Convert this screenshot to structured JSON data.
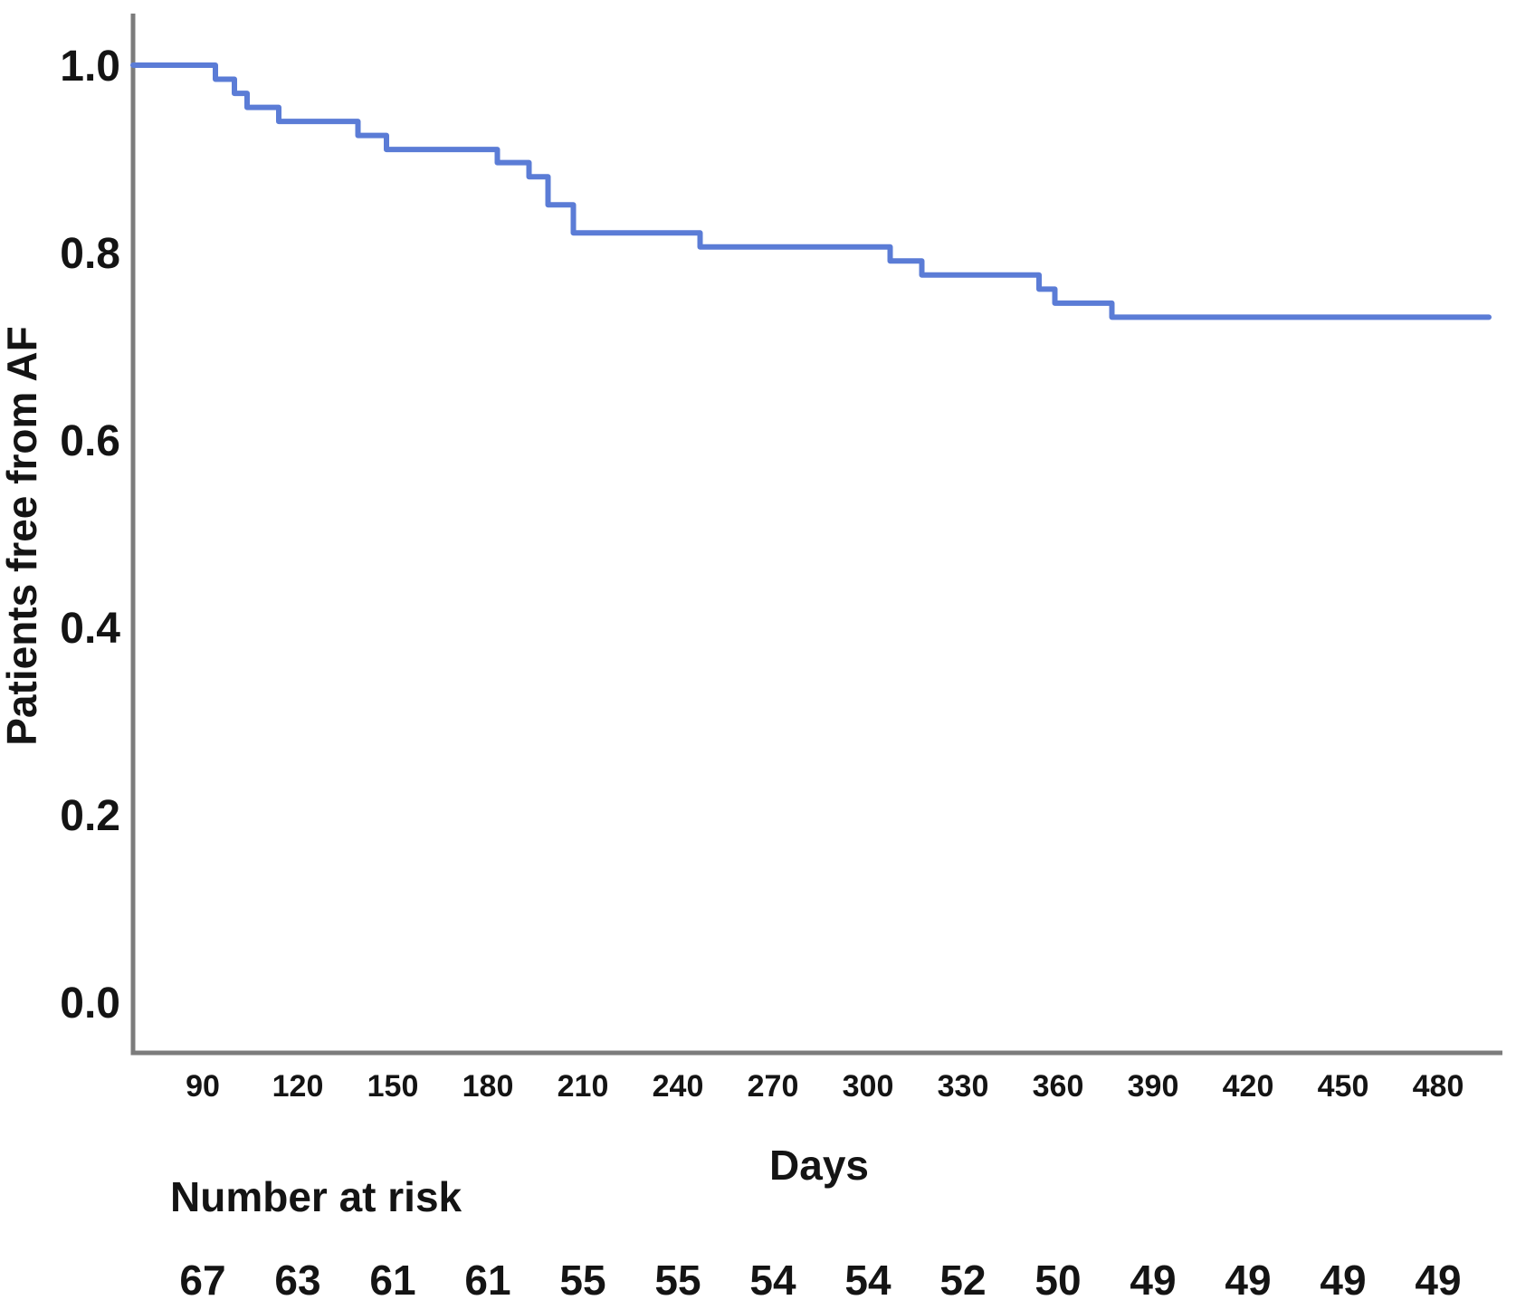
{
  "chart_data": {
    "type": "line",
    "subtype": "kaplan-meier-step-curve",
    "title": "",
    "xlabel": "Days",
    "ylabel": "Patients free from AF",
    "x_ticks": [
      90,
      120,
      150,
      180,
      210,
      240,
      270,
      300,
      330,
      360,
      390,
      420,
      450,
      480
    ],
    "y_ticks": [
      {
        "label": "1.0",
        "value": 1.0
      },
      {
        "label": "0.8",
        "value": 0.8
      },
      {
        "label": "0.6",
        "value": 0.6
      },
      {
        "label": "0.4",
        "value": 0.4
      },
      {
        "label": "0.2",
        "value": 0.2
      },
      {
        "label": "0.0",
        "value": 0.0
      }
    ],
    "xlim": [
      67,
      500
    ],
    "ylim": [
      -0.05,
      1.05
    ],
    "grid": false,
    "legend": "none",
    "colors": {
      "curve": "#5b7cd6",
      "axis": "#7c7c7c",
      "text": "#141414",
      "background": "#ffffff"
    },
    "series": [
      {
        "name": "Patients free from AF",
        "steps": [
          {
            "day": 68,
            "survival": 1.0
          },
          {
            "day": 94,
            "survival": 0.985
          },
          {
            "day": 100,
            "survival": 0.97
          },
          {
            "day": 104,
            "survival": 0.955
          },
          {
            "day": 114,
            "survival": 0.94
          },
          {
            "day": 139,
            "survival": 0.925
          },
          {
            "day": 148,
            "survival": 0.91
          },
          {
            "day": 183,
            "survival": 0.896
          },
          {
            "day": 193,
            "survival": 0.881
          },
          {
            "day": 199,
            "survival": 0.851
          },
          {
            "day": 207,
            "survival": 0.821
          },
          {
            "day": 247,
            "survival": 0.806
          },
          {
            "day": 307,
            "survival": 0.791
          },
          {
            "day": 317,
            "survival": 0.776
          },
          {
            "day": 354,
            "survival": 0.761
          },
          {
            "day": 359,
            "survival": 0.746
          },
          {
            "day": 377,
            "survival": 0.731
          },
          {
            "day": 496,
            "survival": 0.731
          }
        ]
      }
    ],
    "risk_table": {
      "label": "Number at risk",
      "days": [
        90,
        120,
        150,
        180,
        210,
        240,
        270,
        300,
        330,
        360,
        390,
        420,
        450,
        480
      ],
      "values": [
        67,
        63,
        61,
        61,
        55,
        55,
        54,
        54,
        52,
        50,
        49,
        49,
        49,
        49
      ]
    }
  }
}
